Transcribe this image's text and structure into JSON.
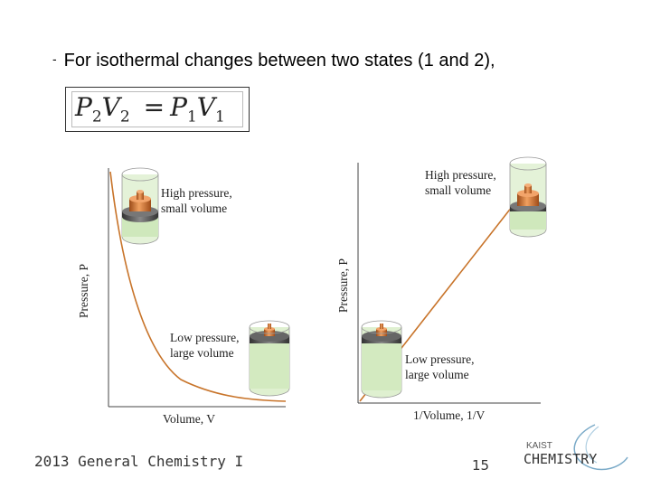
{
  "bullet": {
    "dash": "-",
    "text": "For isothermal changes between two states (1 and 2),"
  },
  "equation": {
    "lhs_p": "P",
    "lhs_p_sub": "2",
    "lhs_v": "V",
    "lhs_v_sub": "2",
    "equals": "=",
    "rhs_p": "P",
    "rhs_p_sub": "1",
    "rhs_v": "V",
    "rhs_v_sub": "1"
  },
  "left_plot": {
    "ylabel": "Pressure, P",
    "xlabel": "Volume, V",
    "high_label_1": "High pressure,",
    "high_label_2": "small volume",
    "low_label_1": "Low pressure,",
    "low_label_2": "large volume",
    "curve_color": "#c8742a"
  },
  "right_plot": {
    "ylabel": "Pressure, P",
    "xlabel": "1/Volume, 1/V",
    "high_label_1": "High pressure,",
    "high_label_2": "small volume",
    "low_label_1": "Low pressure,",
    "low_label_2": "large volume",
    "line_color": "#c8742a"
  },
  "footer": {
    "course": "2013 General Chemistry I",
    "page": "15"
  },
  "logo": {
    "top": "KAIST",
    "main": "CHEMISTRY"
  },
  "colors": {
    "cylinder_fill": "#dff0d0",
    "piston_gray": "#555555",
    "weight_copper": "#d9722e"
  }
}
